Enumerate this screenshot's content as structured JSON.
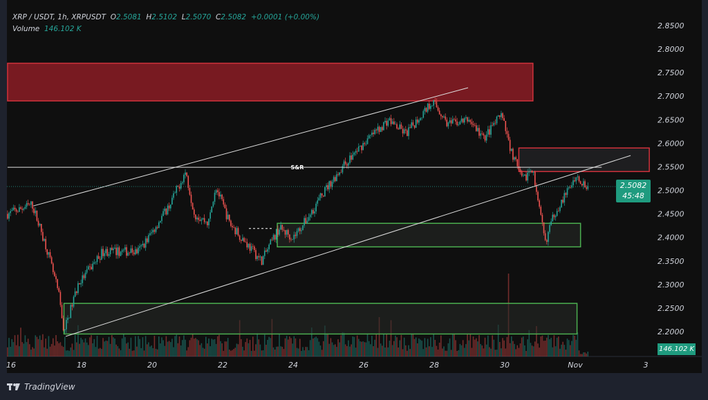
{
  "legend": {
    "symbol": "XRP / USDT, 1h, XRPUSDT",
    "open_label": "O",
    "open": "2.5081",
    "high_label": "H",
    "high": "2.5102",
    "low_label": "L",
    "low": "2.5070",
    "close_label": "C",
    "close": "2.5082",
    "change": "+0.0001 (+0.00%)",
    "volume_label": "Volume",
    "volume": "146.102 K"
  },
  "price_tag": {
    "price": "2.5082",
    "countdown": "45:48"
  },
  "volume_tag": "146.102 K",
  "brand": "TradingView",
  "colors": {
    "up": "#26a69a",
    "down": "#ef5350",
    "supply_zone": "#8b1c24",
    "demand_zone": "#4caf50",
    "background": "#0f0f0f"
  },
  "chart_data": {
    "type": "candlestick",
    "interval": "1h",
    "y_ticks": [
      "2.8500",
      "2.8000",
      "2.7500",
      "2.7000",
      "2.6500",
      "2.6000",
      "2.5500",
      "2.5000",
      "2.4500",
      "2.4000",
      "2.3500",
      "2.3000",
      "2.2500",
      "2.2000"
    ],
    "x_ticks": [
      {
        "day": 16,
        "label": "16"
      },
      {
        "day": 18,
        "label": "18"
      },
      {
        "day": 20,
        "label": "20"
      },
      {
        "day": 22,
        "label": "22"
      },
      {
        "day": 24,
        "label": "24"
      },
      {
        "day": 26,
        "label": "26"
      },
      {
        "day": 28,
        "label": "28"
      },
      {
        "day": 30,
        "label": "30"
      },
      {
        "day": 32,
        "label": "Nov"
      },
      {
        "day": 34,
        "label": "3"
      }
    ],
    "price_path": [
      [
        15.9,
        2.45
      ],
      [
        16.6,
        2.47
      ],
      [
        17.0,
        2.38
      ],
      [
        17.35,
        2.28
      ],
      [
        17.5,
        2.2
      ],
      [
        17.9,
        2.3
      ],
      [
        18.6,
        2.37
      ],
      [
        19.6,
        2.37
      ],
      [
        19.9,
        2.4
      ],
      [
        20.5,
        2.47
      ],
      [
        20.95,
        2.54
      ],
      [
        21.2,
        2.45
      ],
      [
        21.6,
        2.43
      ],
      [
        21.8,
        2.51
      ],
      [
        22.2,
        2.43
      ],
      [
        23.1,
        2.35
      ],
      [
        23.6,
        2.42
      ],
      [
        24.0,
        2.4
      ],
      [
        24.4,
        2.44
      ],
      [
        24.9,
        2.5
      ],
      [
        25.4,
        2.55
      ],
      [
        26.0,
        2.6
      ],
      [
        26.7,
        2.65
      ],
      [
        27.2,
        2.62
      ],
      [
        27.95,
        2.69
      ],
      [
        28.4,
        2.64
      ],
      [
        29.0,
        2.65
      ],
      [
        29.4,
        2.61
      ],
      [
        29.9,
        2.66
      ],
      [
        30.2,
        2.58
      ],
      [
        30.5,
        2.52
      ],
      [
        30.8,
        2.55
      ],
      [
        30.9,
        2.49
      ],
      [
        31.15,
        2.39
      ],
      [
        31.4,
        2.45
      ],
      [
        31.8,
        2.5
      ],
      [
        32.0,
        2.53
      ],
      [
        32.4,
        2.508
      ]
    ],
    "volume_spike": {
      "day": 30.1,
      "value_relative": 1.0
    },
    "zones": [
      {
        "name": "supply-zone-top",
        "kind": "supply",
        "day_from": 15.9,
        "day_to": 30.8,
        "price_low": 2.69,
        "price_high": 2.77
      },
      {
        "name": "supply-zone-small",
        "kind": "supply",
        "day_from": 30.4,
        "day_to": 34.1,
        "price_low": 2.54,
        "price_high": 2.59
      },
      {
        "name": "demand-zone-mid",
        "kind": "demand",
        "day_from": 23.55,
        "day_to": 32.15,
        "price_low": 2.38,
        "price_high": 2.43
      },
      {
        "name": "demand-zone-low",
        "kind": "demand",
        "day_from": 17.5,
        "day_to": 32.05,
        "price_low": 2.195,
        "price_high": 2.26
      }
    ],
    "lines": [
      {
        "name": "channel-upper-line",
        "from": [
          16.63,
          2.467
        ],
        "to": [
          28.96,
          2.718
        ]
      },
      {
        "name": "channel-lower-line",
        "from": [
          17.55,
          2.19
        ],
        "to": [
          33.57,
          2.574
        ]
      },
      {
        "name": "sr-line",
        "from": [
          15.9,
          2.549
        ],
        "to": [
          32.75,
          2.549
        ],
        "label": "S&R"
      }
    ],
    "current_price": 2.5082
  }
}
